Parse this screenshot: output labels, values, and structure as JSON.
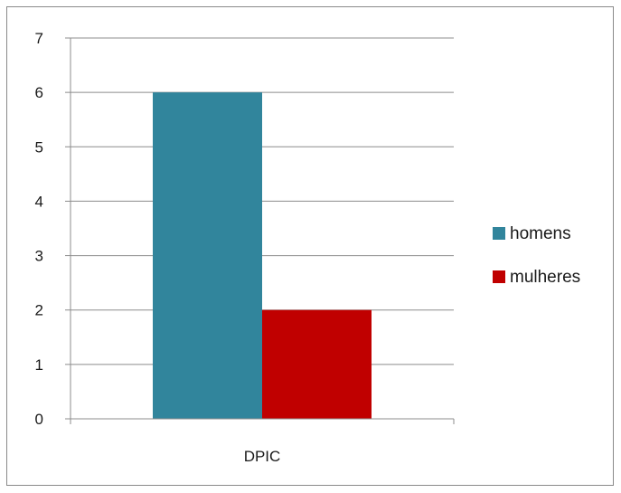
{
  "chart_data": {
    "type": "bar",
    "title": "",
    "xlabel": "",
    "ylabel": "",
    "categories": [
      "DPIC"
    ],
    "series": [
      {
        "name": "homens",
        "values": [
          6
        ],
        "color": "#31859C"
      },
      {
        "name": "mulheres",
        "values": [
          2
        ],
        "color": "#C00000"
      }
    ],
    "ylim": [
      0,
      7
    ],
    "yticks": [
      "0",
      "1",
      "2",
      "3",
      "4",
      "5",
      "6",
      "7"
    ],
    "grid": true,
    "legend_position": "right"
  }
}
